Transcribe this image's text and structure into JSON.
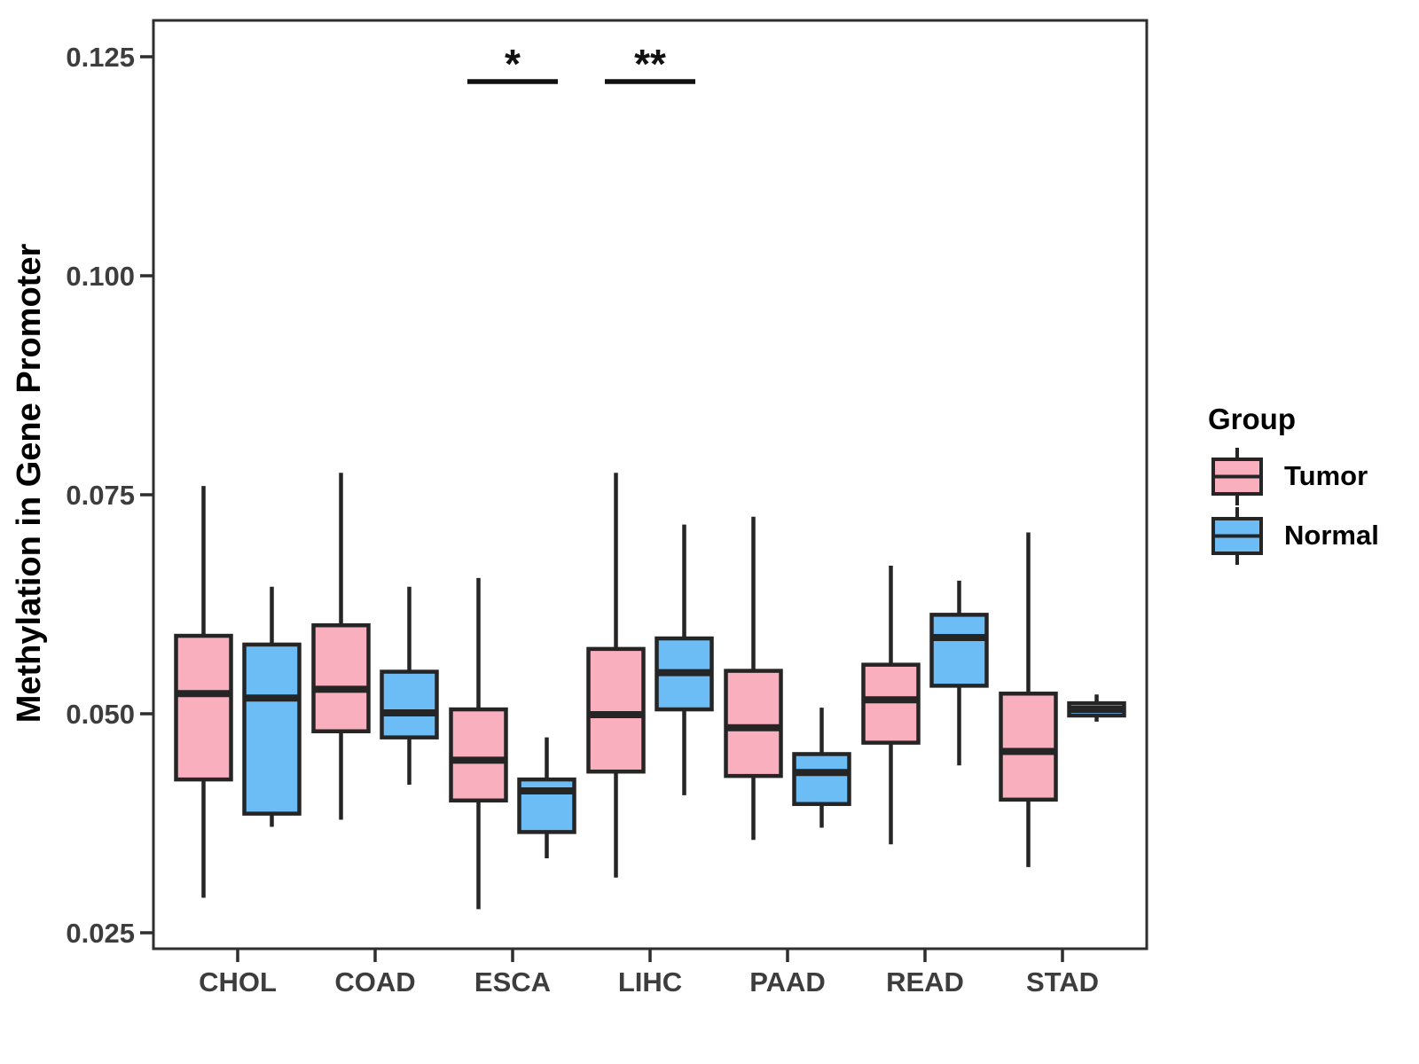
{
  "figure": {
    "background": "#ffffff"
  },
  "y_axis": {
    "title": "Methylation in Gene Promoter",
    "tick_values": [
      0.025,
      0.05,
      0.075,
      0.1,
      0.125
    ],
    "tick_label_color": "#3d3d3d"
  },
  "x_axis": {
    "categories": [
      "CHOL",
      "COAD",
      "ESCA",
      "LIHC",
      "PAAD",
      "READ",
      "STAD"
    ],
    "tick_label_color": "#3d3d3d"
  },
  "legend": {
    "title": "Group",
    "items": [
      {
        "label": "Tumor",
        "color": "#F9AFBE"
      },
      {
        "label": "Normal",
        "color": "#6CBCF6"
      }
    ]
  },
  "colors": {
    "tumor_fill": "#F9AFBE",
    "normal_fill": "#6CBCF6",
    "box_border": "#252525",
    "panel_border": "#2e2e2e",
    "annotation": "#111111"
  },
  "chart_data": {
    "type": "grouped_boxplot",
    "title": "",
    "xlabel": "",
    "ylabel": "Methylation in Gene Promoter",
    "categories": [
      "CHOL",
      "COAD",
      "ESCA",
      "LIHC",
      "PAAD",
      "READ",
      "STAD"
    ],
    "ylim": [
      0.0232,
      0.1292
    ],
    "yticks": [
      0.025,
      0.05,
      0.075,
      0.1,
      0.125
    ],
    "grid": false,
    "legend_position": "right",
    "series": [
      {
        "name": "Tumor",
        "color": "#F9AFBE",
        "stats": [
          {
            "min": 0.029,
            "q1": 0.0425,
            "median": 0.0523,
            "q3": 0.0589,
            "max": 0.076
          },
          {
            "min": 0.0379,
            "q1": 0.048,
            "median": 0.0528,
            "q3": 0.0601,
            "max": 0.0775
          },
          {
            "min": 0.0277,
            "q1": 0.0401,
            "median": 0.0447,
            "q3": 0.0505,
            "max": 0.0655
          },
          {
            "min": 0.0313,
            "q1": 0.0434,
            "median": 0.0499,
            "q3": 0.0574,
            "max": 0.0775
          },
          {
            "min": 0.0356,
            "q1": 0.0429,
            "median": 0.0484,
            "q3": 0.0549,
            "max": 0.0725
          },
          {
            "min": 0.0351,
            "q1": 0.0467,
            "median": 0.0516,
            "q3": 0.0556,
            "max": 0.0669
          },
          {
            "min": 0.0325,
            "q1": 0.0402,
            "median": 0.0457,
            "q3": 0.0523,
            "max": 0.0707
          }
        ]
      },
      {
        "name": "Normal",
        "color": "#6CBCF6",
        "stats": [
          {
            "min": 0.0371,
            "q1": 0.0386,
            "median": 0.0518,
            "q3": 0.0579,
            "max": 0.0645
          },
          {
            "min": 0.0419,
            "q1": 0.0473,
            "median": 0.0501,
            "q3": 0.0548,
            "max": 0.0645
          },
          {
            "min": 0.0335,
            "q1": 0.0365,
            "median": 0.0412,
            "q3": 0.0425,
            "max": 0.0473
          },
          {
            "min": 0.0407,
            "q1": 0.0505,
            "median": 0.0547,
            "q3": 0.0586,
            "max": 0.0716
          },
          {
            "min": 0.037,
            "q1": 0.0397,
            "median": 0.0433,
            "q3": 0.0454,
            "max": 0.0507
          },
          {
            "min": 0.0441,
            "q1": 0.0532,
            "median": 0.0587,
            "q3": 0.0613,
            "max": 0.0652
          },
          {
            "min": 0.0491,
            "q1": 0.0498,
            "median": 0.0505,
            "q3": 0.0512,
            "max": 0.0522
          }
        ]
      }
    ],
    "annotations": [
      {
        "category": "ESCA",
        "label": "*"
      },
      {
        "category": "LIHC",
        "label": "**"
      }
    ]
  }
}
